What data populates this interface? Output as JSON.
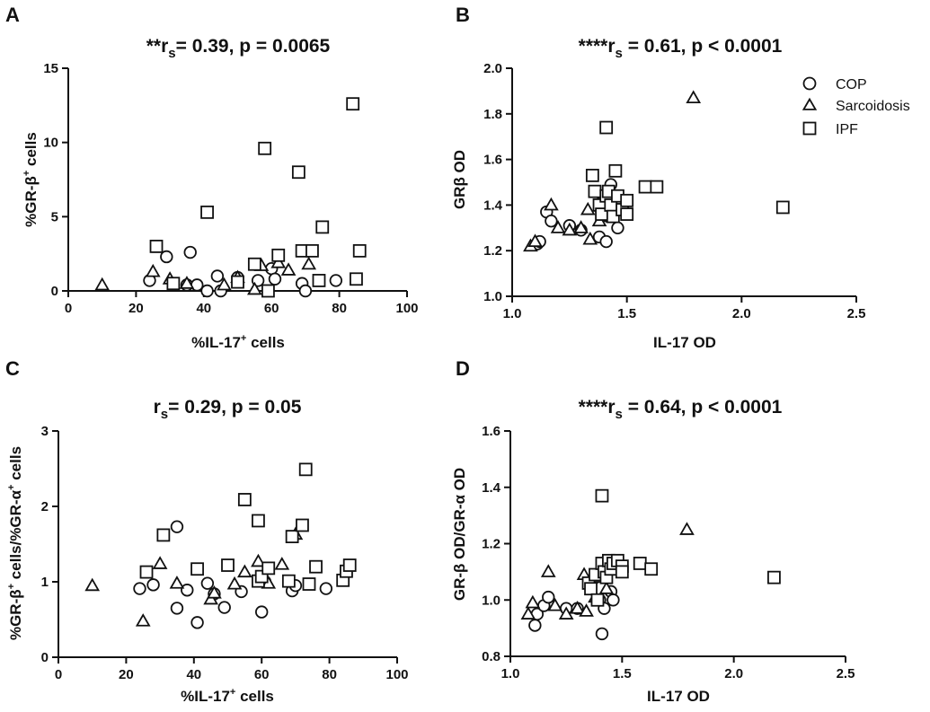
{
  "legend": [
    {
      "marker": "circle",
      "label": "COP"
    },
    {
      "marker": "triangle",
      "label": "Sarcoidosis"
    },
    {
      "marker": "square",
      "label": "IPF"
    }
  ],
  "chart_data": [
    {
      "panel": "A",
      "type": "scatter",
      "title_prefix": "**r",
      "title_sub": "s",
      "title_rest": "= 0.39, p = 0.0065",
      "xlabel": "%IL-17⁺ cells",
      "ylabel": "%GR-β⁺ cells",
      "xlim": [
        0,
        100
      ],
      "ylim": [
        0,
        15
      ],
      "xticks": [
        0,
        20,
        40,
        60,
        80,
        100
      ],
      "yticks": [
        0,
        5,
        10,
        15
      ],
      "series": [
        {
          "name": "COP",
          "marker": "circle",
          "points": [
            [
              24,
              0.7
            ],
            [
              29,
              2.3
            ],
            [
              35,
              0.4
            ],
            [
              36,
              2.6
            ],
            [
              38,
              0.4
            ],
            [
              41,
              0
            ],
            [
              44,
              1.0
            ],
            [
              45,
              0
            ],
            [
              50,
              0.9
            ],
            [
              56,
              0.7
            ],
            [
              60,
              1.5
            ],
            [
              61,
              0.8
            ],
            [
              69,
              0.5
            ],
            [
              70,
              0
            ],
            [
              79,
              0.7
            ]
          ]
        },
        {
          "name": "Sarcoidosis",
          "marker": "triangle",
          "points": [
            [
              10,
              0.4
            ],
            [
              25,
              1.3
            ],
            [
              30,
              0.8
            ],
            [
              35,
              0.5
            ],
            [
              46,
              0.4
            ],
            [
              50,
              0.9
            ],
            [
              55,
              0.1
            ],
            [
              57,
              1.7
            ],
            [
              62,
              1.9
            ],
            [
              65,
              1.4
            ],
            [
              71,
              1.8
            ]
          ]
        },
        {
          "name": "IPF",
          "marker": "square",
          "points": [
            [
              26,
              3.0
            ],
            [
              31,
              0.5
            ],
            [
              41,
              5.3
            ],
            [
              50,
              0.6
            ],
            [
              55,
              1.8
            ],
            [
              58,
              9.6
            ],
            [
              59,
              0
            ],
            [
              62,
              2.4
            ],
            [
              68,
              8.0
            ],
            [
              69,
              2.7
            ],
            [
              72,
              2.7
            ],
            [
              74,
              0.7
            ],
            [
              75,
              4.3
            ],
            [
              84,
              12.6
            ],
            [
              85,
              0.8
            ],
            [
              86,
              2.7
            ]
          ]
        }
      ]
    },
    {
      "panel": "B",
      "type": "scatter",
      "title_prefix": "****r",
      "title_sub": "s",
      "title_rest": " = 0.61, p < 0.0001",
      "xlabel": "IL-17 OD",
      "ylabel": "GRβ OD",
      "xlim": [
        1.0,
        2.5
      ],
      "ylim": [
        1.0,
        2.0
      ],
      "xticks": [
        "1.0",
        "1.5",
        "2.0",
        "2.5"
      ],
      "yticks": [
        "1.0",
        "1.2",
        "1.4",
        "1.6",
        "1.8",
        "2.0"
      ],
      "series": [
        {
          "name": "COP",
          "marker": "circle",
          "points": [
            [
              1.11,
              1.23
            ],
            [
              1.12,
              1.24
            ],
            [
              1.15,
              1.37
            ],
            [
              1.17,
              1.33
            ],
            [
              1.25,
              1.31
            ],
            [
              1.3,
              1.29
            ],
            [
              1.38,
              1.26
            ],
            [
              1.4,
              1.37
            ],
            [
              1.41,
              1.24
            ],
            [
              1.42,
              1.35
            ],
            [
              1.43,
              1.49
            ],
            [
              1.45,
              1.41
            ],
            [
              1.46,
              1.3
            ]
          ]
        },
        {
          "name": "Sarcoidosis",
          "marker": "triangle",
          "points": [
            [
              1.08,
              1.22
            ],
            [
              1.1,
              1.24
            ],
            [
              1.17,
              1.4
            ],
            [
              1.2,
              1.3
            ],
            [
              1.25,
              1.29
            ],
            [
              1.3,
              1.3
            ],
            [
              1.33,
              1.38
            ],
            [
              1.34,
              1.25
            ],
            [
              1.38,
              1.33
            ],
            [
              1.4,
              1.45
            ],
            [
              1.43,
              1.35
            ],
            [
              1.79,
              1.87
            ]
          ]
        },
        {
          "name": "IPF",
          "marker": "square",
          "points": [
            [
              1.35,
              1.53
            ],
            [
              1.36,
              1.46
            ],
            [
              1.38,
              1.4
            ],
            [
              1.39,
              1.36
            ],
            [
              1.41,
              1.74
            ],
            [
              1.41,
              1.44
            ],
            [
              1.42,
              1.46
            ],
            [
              1.43,
              1.4
            ],
            [
              1.44,
              1.35
            ],
            [
              1.45,
              1.55
            ],
            [
              1.46,
              1.44
            ],
            [
              1.48,
              1.38
            ],
            [
              1.5,
              1.36
            ],
            [
              1.5,
              1.42
            ],
            [
              1.58,
              1.48
            ],
            [
              1.63,
              1.48
            ],
            [
              2.18,
              1.39
            ]
          ]
        }
      ]
    },
    {
      "panel": "C",
      "type": "scatter",
      "title_prefix": "r",
      "title_sub": "s",
      "title_rest": "= 0.29, p = 0.05",
      "xlabel": "%IL-17⁺ cells",
      "ylabel": "%GR-β⁺ cells/%GR-α⁺ cells",
      "xlim": [
        0,
        100
      ],
      "ylim": [
        0,
        3
      ],
      "xticks": [
        0,
        20,
        40,
        60,
        80,
        100
      ],
      "yticks": [
        0,
        1,
        2,
        3
      ],
      "series": [
        {
          "name": "COP",
          "marker": "circle",
          "points": [
            [
              24,
              0.91
            ],
            [
              28,
              0.96
            ],
            [
              35,
              1.73
            ],
            [
              35,
              0.65
            ],
            [
              38,
              0.89
            ],
            [
              41,
              0.46
            ],
            [
              44,
              0.98
            ],
            [
              46,
              0.84
            ],
            [
              49,
              0.66
            ],
            [
              54,
              0.87
            ],
            [
              60,
              0.6
            ],
            [
              61,
              1.0
            ],
            [
              69,
              0.88
            ],
            [
              70,
              0.95
            ],
            [
              79,
              0.91
            ]
          ]
        },
        {
          "name": "Sarcoidosis",
          "marker": "triangle",
          "points": [
            [
              10,
              0.95
            ],
            [
              25,
              0.48
            ],
            [
              30,
              1.24
            ],
            [
              35,
              0.98
            ],
            [
              45,
              0.77
            ],
            [
              46,
              0.85
            ],
            [
              52,
              0.97
            ],
            [
              55,
              1.13
            ],
            [
              59,
              1.27
            ],
            [
              62,
              0.98
            ],
            [
              66,
              1.23
            ],
            [
              70,
              1.63
            ]
          ]
        },
        {
          "name": "IPF",
          "marker": "square",
          "points": [
            [
              26,
              1.13
            ],
            [
              31,
              1.62
            ],
            [
              41,
              1.17
            ],
            [
              50,
              1.22
            ],
            [
              55,
              2.09
            ],
            [
              59,
              1.81
            ],
            [
              59,
              1.01
            ],
            [
              60,
              1.07
            ],
            [
              62,
              1.18
            ],
            [
              68,
              1.01
            ],
            [
              69,
              1.6
            ],
            [
              72,
              1.75
            ],
            [
              73,
              2.49
            ],
            [
              74,
              0.97
            ],
            [
              76,
              1.2
            ],
            [
              84,
              1.02
            ],
            [
              85,
              1.14
            ],
            [
              86,
              1.22
            ]
          ]
        }
      ]
    },
    {
      "panel": "D",
      "type": "scatter",
      "title_prefix": "****r",
      "title_sub": "s",
      "title_rest": " = 0.64, p < 0.0001",
      "xlabel": "IL-17 OD",
      "ylabel": "GR-β OD/GR-α OD",
      "xlim": [
        1.0,
        2.5
      ],
      "ylim": [
        0.8,
        1.6
      ],
      "xticks": [
        "1.0",
        "1.5",
        "2.0",
        "2.5"
      ],
      "yticks": [
        "0.8",
        "1.0",
        "1.2",
        "1.4",
        "1.6"
      ],
      "series": [
        {
          "name": "COP",
          "marker": "circle",
          "points": [
            [
              1.11,
              0.91
            ],
            [
              1.12,
              0.95
            ],
            [
              1.15,
              0.98
            ],
            [
              1.17,
              1.01
            ],
            [
              1.25,
              0.97
            ],
            [
              1.3,
              0.97
            ],
            [
              1.38,
              1.08
            ],
            [
              1.4,
              1.0
            ],
            [
              1.41,
              0.88
            ],
            [
              1.42,
              0.97
            ],
            [
              1.43,
              1.09
            ],
            [
              1.45,
              1.03
            ],
            [
              1.46,
              1.0
            ]
          ]
        },
        {
          "name": "Sarcoidosis",
          "marker": "triangle",
          "points": [
            [
              1.08,
              0.95
            ],
            [
              1.1,
              0.99
            ],
            [
              1.17,
              1.1
            ],
            [
              1.2,
              0.98
            ],
            [
              1.25,
              0.95
            ],
            [
              1.3,
              0.97
            ],
            [
              1.33,
              1.09
            ],
            [
              1.34,
              0.96
            ],
            [
              1.38,
              1.01
            ],
            [
              1.4,
              1.08
            ],
            [
              1.43,
              1.04
            ],
            [
              1.79,
              1.25
            ]
          ]
        },
        {
          "name": "IPF",
          "marker": "square",
          "points": [
            [
              1.35,
              1.06
            ],
            [
              1.36,
              1.04
            ],
            [
              1.38,
              1.09
            ],
            [
              1.39,
              1.0
            ],
            [
              1.41,
              1.37
            ],
            [
              1.41,
              1.13
            ],
            [
              1.42,
              1.1
            ],
            [
              1.43,
              1.08
            ],
            [
              1.44,
              1.14
            ],
            [
              1.45,
              1.11
            ],
            [
              1.46,
              1.13
            ],
            [
              1.48,
              1.14
            ],
            [
              1.5,
              1.12
            ],
            [
              1.5,
              1.1
            ],
            [
              1.58,
              1.13
            ],
            [
              1.63,
              1.11
            ],
            [
              2.18,
              1.08
            ]
          ]
        }
      ]
    }
  ]
}
